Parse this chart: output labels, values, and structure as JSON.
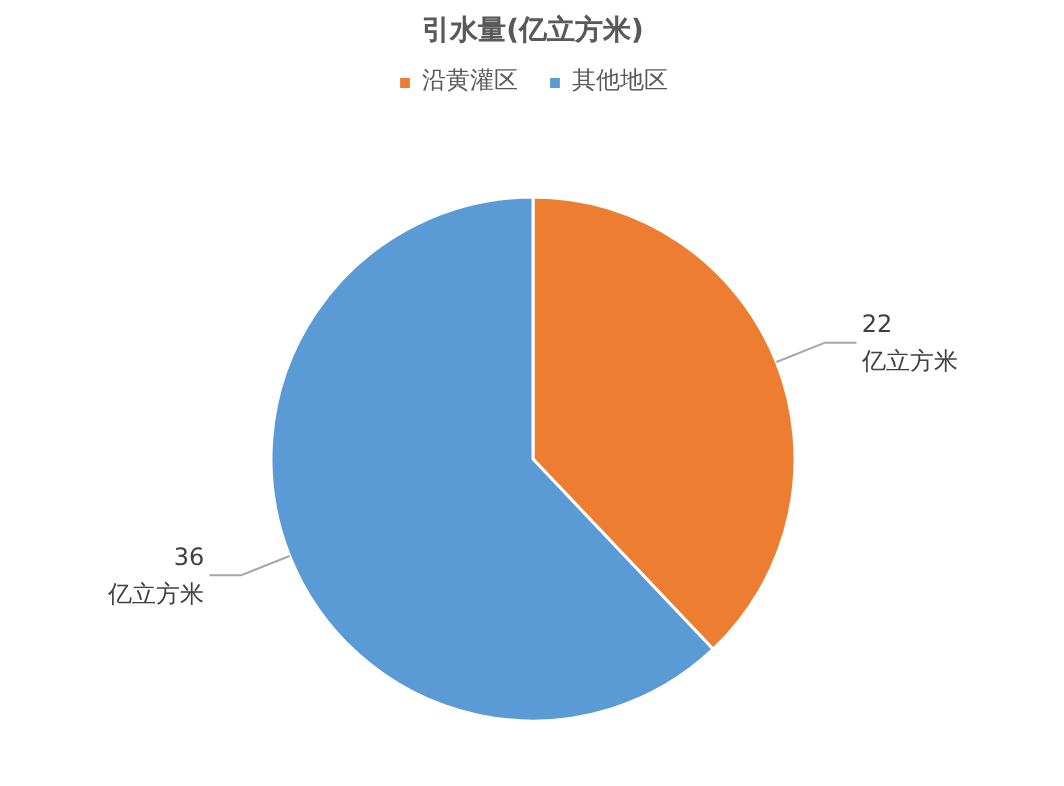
{
  "chart_data": {
    "type": "pie",
    "title": "引水量(亿立方米)",
    "categories": [
      "沿黄灌区",
      "其他地区"
    ],
    "values": [
      22,
      36
    ],
    "colors": [
      "#ed7d31",
      "#5b9bd5"
    ],
    "value_labels": [
      "22\n亿立方米",
      "36\n亿立方米"
    ],
    "legend": "top"
  }
}
